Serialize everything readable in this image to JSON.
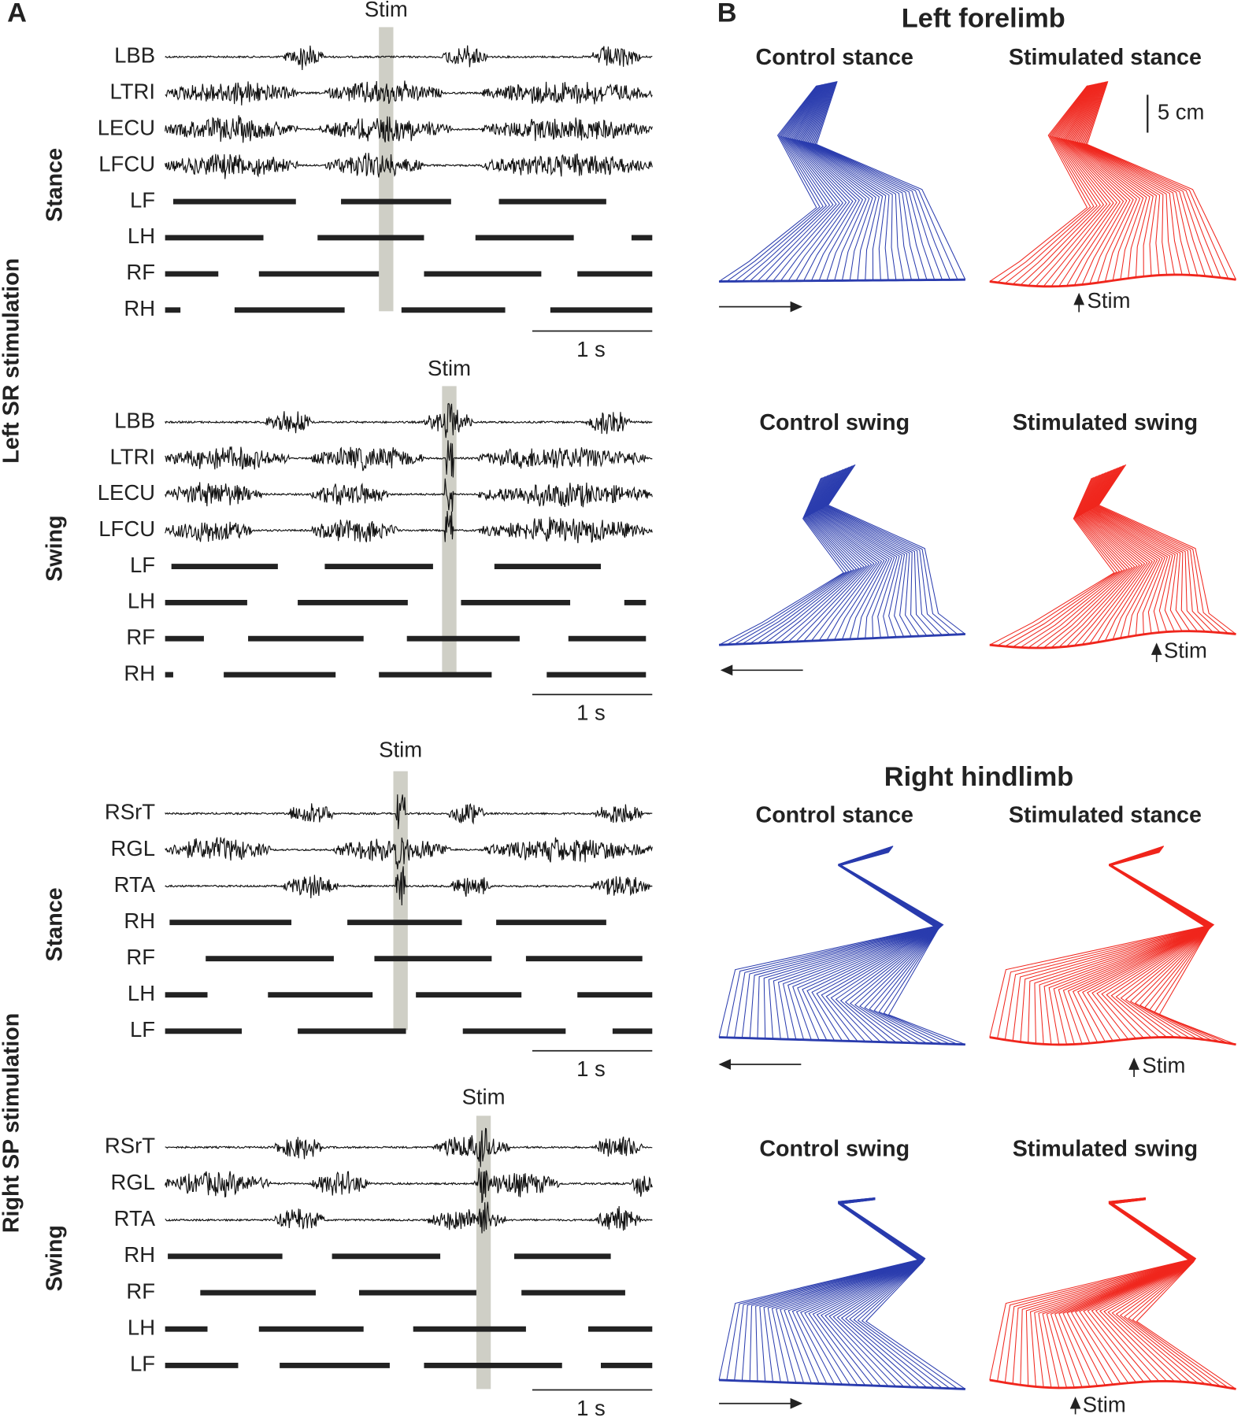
{
  "panel_a": {
    "label": "A",
    "sections": [
      {
        "title": "Left SR stimulation",
        "trials": [
          {
            "phase": "Stance",
            "stim": "Stim",
            "channels": [
              "LBB",
              "LTRI",
              "LECU",
              "LFCU",
              "LF",
              "LH",
              "RF",
              "RH"
            ],
            "scale": "1 s"
          },
          {
            "phase": "Swing",
            "stim": "Stim",
            "channels": [
              "LBB",
              "LTRI",
              "LECU",
              "LFCU",
              "LF",
              "LH",
              "RF",
              "RH"
            ],
            "scale": "1 s"
          }
        ]
      },
      {
        "title": "Right SP stimulation",
        "trials": [
          {
            "phase": "Stance",
            "stim": "Stim",
            "channels": [
              "RSrT",
              "RGL",
              "RTA",
              "RH",
              "RF",
              "LH",
              "LF"
            ],
            "scale": "1 s"
          },
          {
            "phase": "Swing",
            "stim": "Stim",
            "channels": [
              "RSrT",
              "RGL",
              "RTA",
              "RH",
              "RF",
              "LH",
              "LF"
            ],
            "scale": "1 s"
          }
        ]
      }
    ]
  },
  "panel_b": {
    "label": "B",
    "limbs": [
      {
        "title": "Left forelimb",
        "scale": "5 cm",
        "conditions": [
          {
            "label": "Control stance"
          },
          {
            "label": "Stimulated stance",
            "note": "Stim"
          },
          {
            "label": "Control swing"
          },
          {
            "label": "Stimulated swing",
            "note": "Stim"
          }
        ]
      },
      {
        "title": "Right hindlimb",
        "conditions": [
          {
            "label": "Control stance"
          },
          {
            "label": "Stimulated stance",
            "note": "Stim"
          },
          {
            "label": "Control swing"
          },
          {
            "label": "Stimulated swing",
            "note": "Stim"
          }
        ]
      }
    ]
  }
}
